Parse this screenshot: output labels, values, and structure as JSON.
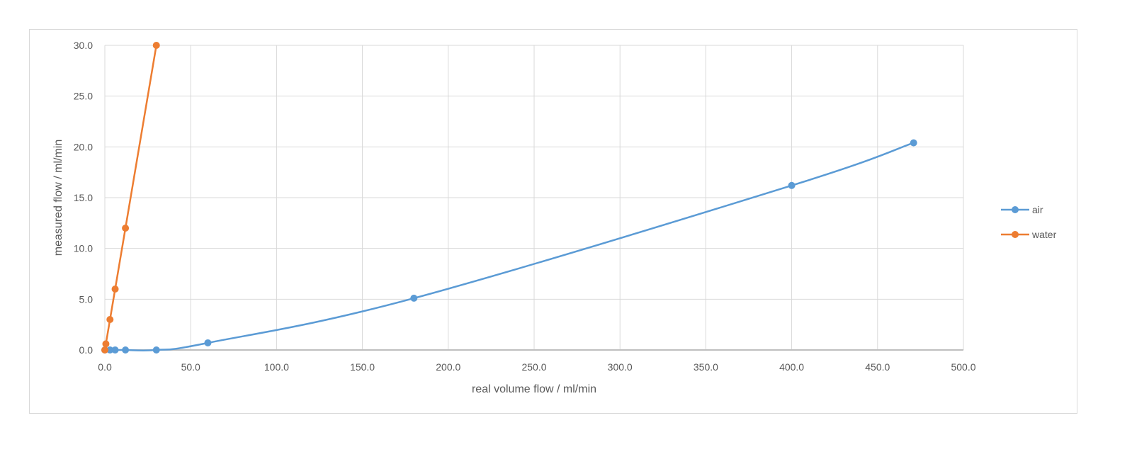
{
  "chart_data": {
    "type": "scatter",
    "title": "",
    "xlabel": "real volume flow / ml/min",
    "ylabel": "measured flow / ml/min",
    "xlim": [
      0,
      500
    ],
    "ylim": [
      0,
      30
    ],
    "xticks": [
      0,
      50,
      100,
      150,
      200,
      250,
      300,
      350,
      400,
      450,
      500
    ],
    "yticks": [
      0,
      5,
      10,
      15,
      20,
      25,
      30
    ],
    "xtick_labels": [
      "0.0",
      "50.0",
      "100.0",
      "150.0",
      "200.0",
      "250.0",
      "300.0",
      "350.0",
      "400.0",
      "450.0",
      "500.0"
    ],
    "ytick_labels": [
      "0.0",
      "5.0",
      "10.0",
      "15.0",
      "20.0",
      "25.0",
      "30.0"
    ],
    "grid": true,
    "legend_position": "right",
    "series": [
      {
        "name": "air",
        "color": "#5b9bd5",
        "smooth": true,
        "points": [
          [
            0,
            0
          ],
          [
            3,
            0
          ],
          [
            6,
            0
          ],
          [
            12,
            0
          ],
          [
            30,
            0
          ],
          [
            60,
            0.7
          ],
          [
            180,
            5.1
          ],
          [
            400,
            16.2
          ],
          [
            471,
            20.4
          ]
        ]
      },
      {
        "name": "water",
        "color": "#ed7d31",
        "smooth": false,
        "points": [
          [
            0,
            0
          ],
          [
            0.6,
            0.6
          ],
          [
            3,
            3
          ],
          [
            6,
            6
          ],
          [
            12,
            12
          ],
          [
            30,
            30
          ]
        ]
      }
    ]
  }
}
